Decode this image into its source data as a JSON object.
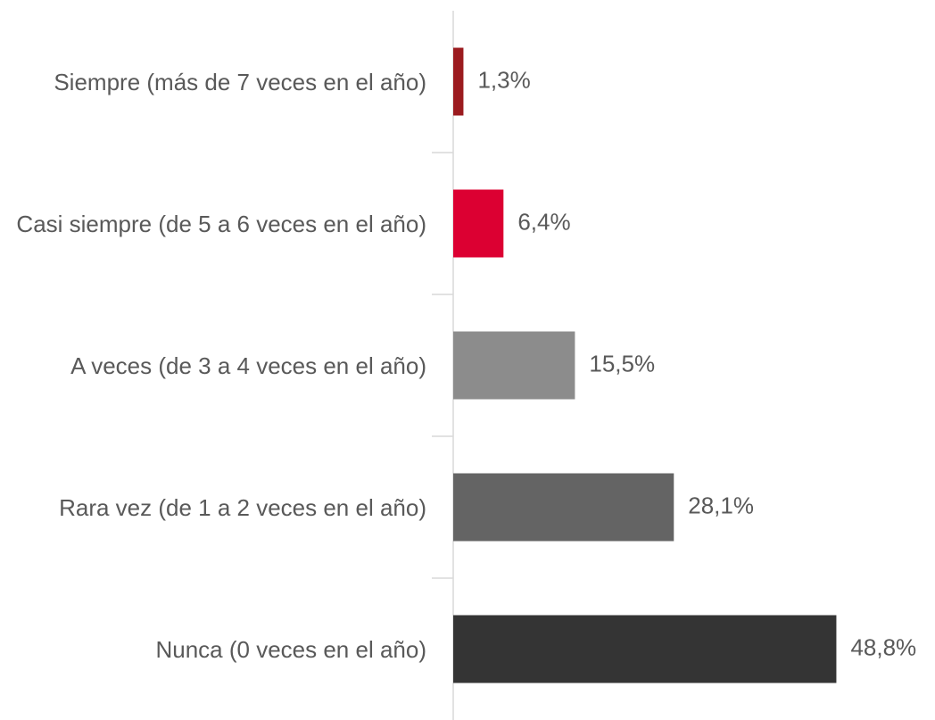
{
  "chart_data": {
    "type": "bar",
    "orientation": "horizontal",
    "categories": [
      "Siempre (más de 7 veces en el año)",
      "Casi siempre (de 5 a 6 veces en el año)",
      "A veces (de 3 a 4 veces en el año)",
      "Rara vez (de 1 a 2 veces en el año)",
      "Nunca (0 veces en el año)"
    ],
    "values": [
      1.3,
      6.4,
      15.5,
      28.1,
      48.8
    ],
    "value_labels": [
      "1,3%",
      "6,4%",
      "15,5%",
      "28,1%",
      "48,8%"
    ],
    "colors": [
      "#9b1b1f",
      "#dc0032",
      "#8c8c8c",
      "#646464",
      "#343434"
    ],
    "xlim": [
      0,
      50
    ]
  }
}
